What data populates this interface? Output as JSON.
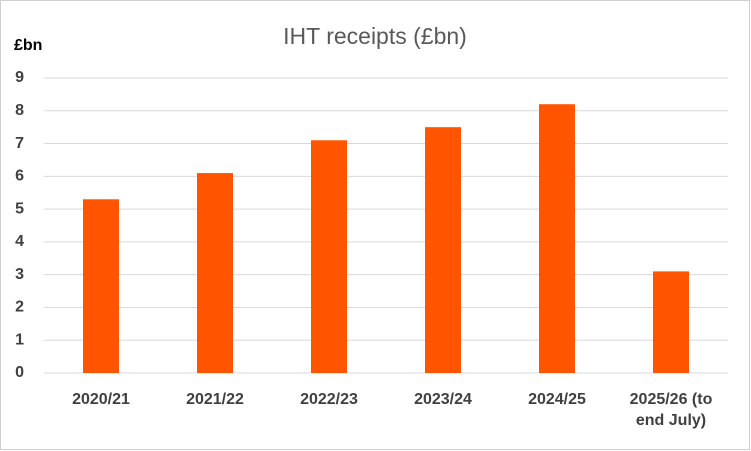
{
  "chart_data": {
    "type": "bar",
    "title": "IHT receipts (£bn)",
    "y_label": "£bn",
    "categories": [
      "2020/21",
      "2021/22",
      "2022/23",
      "2023/24",
      "2024/25",
      "2025/26 (to end July)"
    ],
    "values": [
      5.3,
      6.1,
      7.1,
      7.5,
      8.2,
      3.1
    ],
    "color": "#ff5500",
    "ylim": [
      0,
      9
    ],
    "yticks": [
      0,
      1,
      2,
      3,
      4,
      5,
      6,
      7,
      8,
      9
    ],
    "grid": true
  }
}
